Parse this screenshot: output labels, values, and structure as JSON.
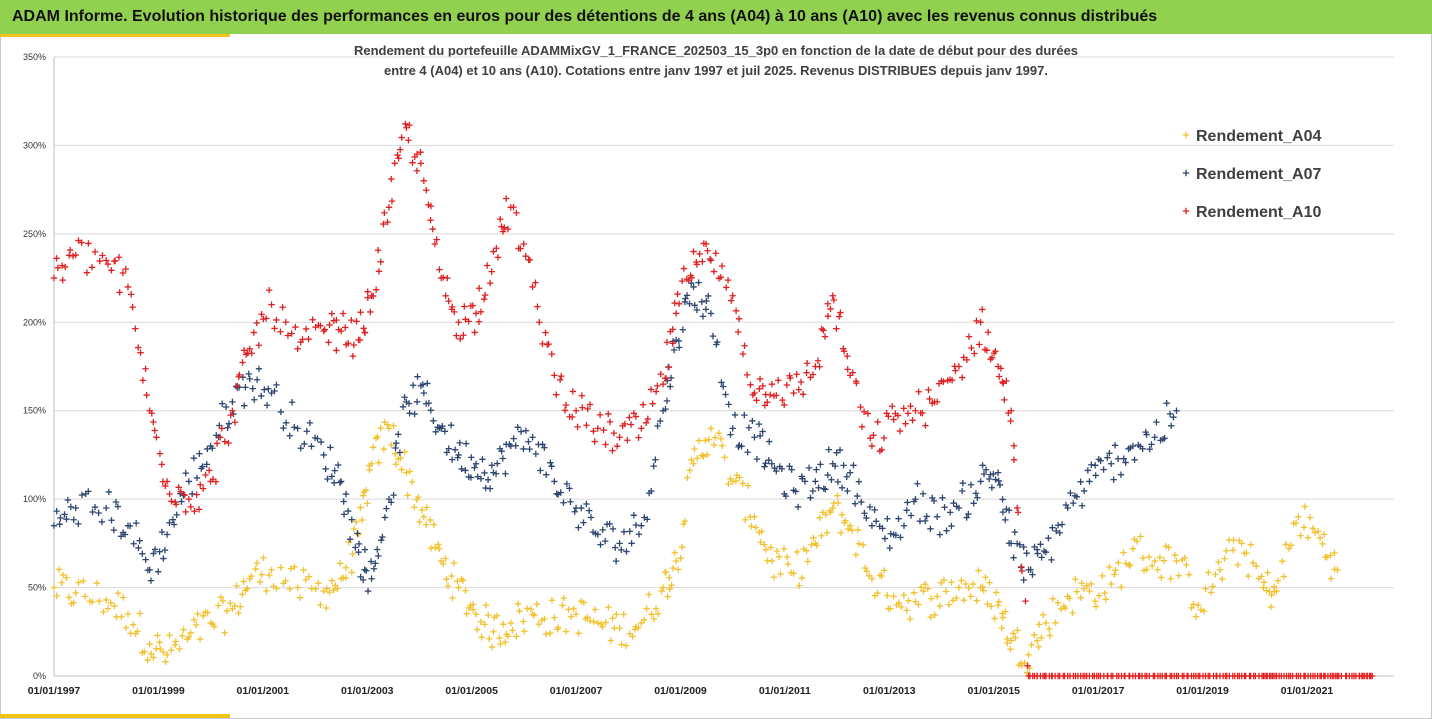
{
  "header": {
    "title": "ADAM Informe. Evolution historique des performances en euros pour des détentions de 4 ans (A04) à 10 ans (A10) avec les revenus connus distribués"
  },
  "colors": {
    "header_bg": "#92d050",
    "accent": "#f0c419",
    "A04": "#f2c12e",
    "A07": "#2f4670",
    "A10": "#e02020"
  },
  "chart_data": {
    "type": "scatter",
    "marker": "plus",
    "title_line1": "Rendement du portefeuille ADAMMixGV_1_FRANCE_202503_15_3p0 en fonction de la date de début pour des durées",
    "title_line2": "entre 4 (A04) et 10 ans (A10). Cotations entre janv 1997 et juil 2025. Revenus DISTRIBUES depuis janv 1997.",
    "x_type": "date",
    "xlim": [
      "01/01/1997",
      "01/09/2022"
    ],
    "x_ticks": [
      "01/01/1997",
      "01/01/1999",
      "01/01/2001",
      "01/01/2003",
      "01/01/2005",
      "01/01/2007",
      "01/01/2009",
      "01/01/2011",
      "01/01/2013",
      "01/01/2015",
      "01/01/2017",
      "01/01/2019",
      "01/01/2021"
    ],
    "ylim": [
      0,
      350
    ],
    "y_ticks": [
      "0%",
      "50%",
      "100%",
      "150%",
      "200%",
      "250%",
      "300%",
      "350%"
    ],
    "grid": "horizontal",
    "legend_position": "right",
    "series": [
      {
        "name": "Rendement_A04",
        "color": "#f2c12e",
        "x": [
          "1997-01",
          "1997-06",
          "1998-01",
          "1998-06",
          "1998-11",
          "1999-03",
          "1999-08",
          "2000-01",
          "2000-06",
          "2000-10",
          "2001-03",
          "2001-09",
          "2002-03",
          "2002-07",
          "2002-11",
          "2003-02",
          "2003-06",
          "2003-10",
          "2004-02",
          "2004-06",
          "2004-10",
          "2005-02",
          "2005-06",
          "2005-10",
          "2006-03",
          "2006-08",
          "2007-01",
          "2007-06",
          "2007-11",
          "2008-04",
          "2008-09",
          "2008-12",
          "2009-04",
          "2009-08",
          "2010-01",
          "2010-06",
          "2010-10",
          "2011-03",
          "2011-08",
          "2011-12",
          "2012-04",
          "2012-09",
          "2013-02",
          "2013-07",
          "2013-12",
          "2014-05",
          "2014-10",
          "2015-02",
          "2015-05",
          "2015-09",
          "2016-01",
          "2016-06",
          "2016-11",
          "2017-04",
          "2017-09",
          "2018-02",
          "2018-07",
          "2018-12",
          "2019-05",
          "2019-10",
          "2020-03",
          "2020-06",
          "2020-11",
          "2021-04",
          "2021-08"
        ],
        "values": [
          50,
          47,
          43,
          35,
          18,
          12,
          22,
          30,
          38,
          55,
          60,
          50,
          48,
          55,
          80,
          120,
          140,
          115,
          90,
          65,
          50,
          35,
          25,
          30,
          35,
          33,
          35,
          30,
          27,
          30,
          50,
          65,
          120,
          140,
          110,
          90,
          65,
          58,
          75,
          95,
          85,
          55,
          45,
          42,
          45,
          50,
          50,
          40,
          20,
          12,
          30,
          45,
          48,
          52,
          72,
          65,
          65,
          40,
          60,
          75,
          50,
          48,
          90,
          78,
          60
        ]
      },
      {
        "name": "Rendement_A07",
        "color": "#2f4670",
        "x": [
          "1997-01",
          "1997-06",
          "1998-01",
          "1998-06",
          "1998-11",
          "1999-03",
          "1999-08",
          "2000-01",
          "2000-06",
          "2000-10",
          "2001-03",
          "2001-09",
          "2002-03",
          "2002-07",
          "2002-11",
          "2003-02",
          "2003-06",
          "2003-10",
          "2004-02",
          "2004-06",
          "2004-10",
          "2005-02",
          "2005-06",
          "2005-10",
          "2006-03",
          "2006-08",
          "2007-01",
          "2007-06",
          "2007-11",
          "2008-04",
          "2008-09",
          "2008-12",
          "2009-04",
          "2009-08",
          "2010-01",
          "2010-06",
          "2010-10",
          "2011-03",
          "2011-08",
          "2011-12",
          "2012-04",
          "2012-09",
          "2013-02",
          "2013-07",
          "2013-12",
          "2014-05",
          "2014-10",
          "2015-02",
          "2015-05",
          "2015-09",
          "2016-01",
          "2016-06",
          "2016-11",
          "2017-04",
          "2017-09",
          "2018-02",
          "2018-07"
        ],
        "values": [
          85,
          95,
          95,
          85,
          60,
          80,
          110,
          130,
          155,
          168,
          160,
          140,
          125,
          110,
          70,
          55,
          100,
          155,
          160,
          140,
          125,
          120,
          115,
          130,
          135,
          110,
          95,
          80,
          75,
          85,
          150,
          190,
          220,
          205,
          140,
          135,
          120,
          105,
          110,
          120,
          115,
          85,
          80,
          100,
          90,
          95,
          110,
          115,
          75,
          60,
          70,
          95,
          110,
          120,
          130,
          135,
          150
        ]
      },
      {
        "name": "Rendement_A10",
        "color": "#e02020",
        "x": [
          "1997-01",
          "1997-06",
          "1998-01",
          "1998-06",
          "1998-11",
          "1999-03",
          "1999-08",
          "2000-01",
          "2000-06",
          "2000-10",
          "2001-03",
          "2001-09",
          "2002-03",
          "2002-07",
          "2002-11",
          "2003-02",
          "2003-06",
          "2003-10",
          "2004-02",
          "2004-06",
          "2004-10",
          "2005-02",
          "2005-06",
          "2005-10",
          "2006-03",
          "2006-08",
          "2007-01",
          "2007-06",
          "2007-11",
          "2008-04",
          "2008-09",
          "2008-12",
          "2009-04",
          "2009-08",
          "2010-01",
          "2010-06",
          "2010-10",
          "2011-03",
          "2011-08",
          "2011-12",
          "2012-04",
          "2012-09",
          "2013-02",
          "2013-07",
          "2013-12",
          "2014-05",
          "2014-10",
          "2015-02",
          "2015-05",
          "2015-09",
          "2016-01",
          "2016-06",
          "2016-11",
          "2017-04",
          "2017-09",
          "2018-02",
          "2018-07",
          "2018-12",
          "2019-05",
          "2019-10",
          "2020-03",
          "2020-06",
          "2020-11",
          "2021-04",
          "2021-08",
          "2022-01",
          "2022-04"
        ],
        "values": [
          225,
          238,
          235,
          220,
          150,
          110,
          100,
          110,
          150,
          185,
          210,
          185,
          195,
          195,
          190,
          215,
          265,
          310,
          280,
          225,
          200,
          205,
          240,
          265,
          220,
          170,
          150,
          140,
          135,
          140,
          165,
          205,
          240,
          235,
          215,
          160,
          165,
          160,
          175,
          215,
          170,
          130,
          145,
          150,
          155,
          175,
          200,
          175,
          150,
          0,
          0,
          0,
          0,
          0,
          0,
          0,
          0,
          0,
          0,
          0,
          0,
          0,
          0,
          0,
          0,
          0,
          0
        ]
      }
    ]
  }
}
